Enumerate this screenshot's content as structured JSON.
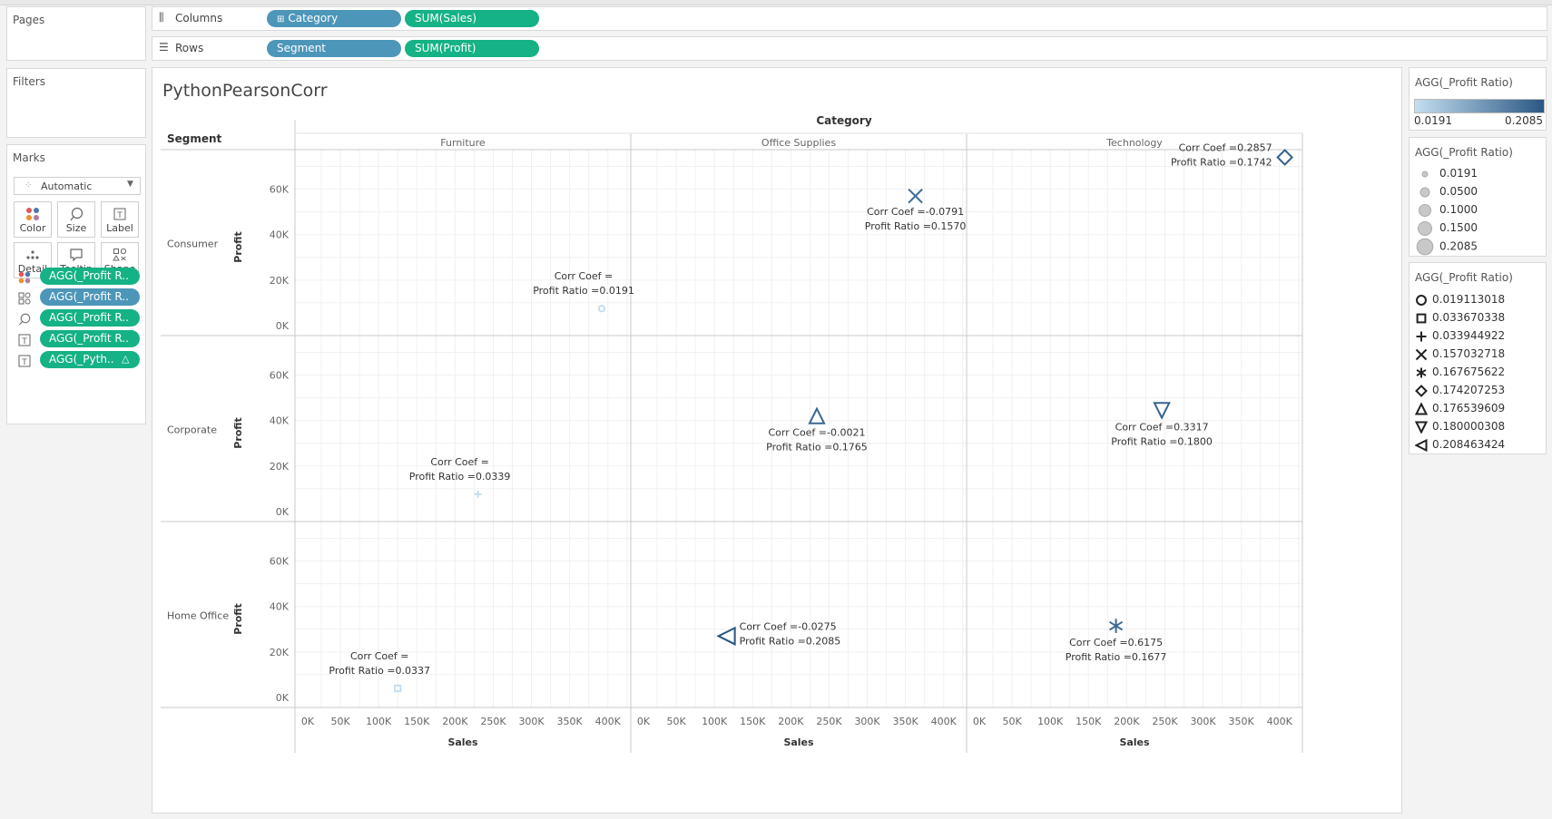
{
  "shelves": {
    "pages_title": "Pages",
    "columns_label": "Columns",
    "rows_label": "Rows",
    "columns_pills": [
      "Category",
      "SUM(Sales)"
    ],
    "rows_pills": [
      "Segment",
      "SUM(Profit)"
    ]
  },
  "filters": {
    "title": "Filters"
  },
  "marks": {
    "title": "Marks",
    "mark_type": "Automatic",
    "buttons": [
      "Color",
      "Size",
      "Label",
      "Detail",
      "Tooltip",
      "Shape"
    ],
    "fields": [
      {
        "icon": "color-dots-icon",
        "label": "AGG(_Profit R..",
        "color": "#15b285"
      },
      {
        "icon": "shape-icon",
        "label": "AGG(_Profit R..",
        "color": "#4c96b9"
      },
      {
        "icon": "size-icon",
        "label": "AGG(_Profit R..",
        "color": "#15b285"
      },
      {
        "icon": "label-icon",
        "label": "AGG(_Profit R..",
        "color": "#15b285"
      },
      {
        "icon": "label-icon",
        "label": "AGG(_Pyth..",
        "color": "#15b285"
      }
    ]
  },
  "view": {
    "title": "PythonPearsonCorr",
    "column_header": "Category",
    "row_header": "Segment",
    "y_axis_label": "Profit",
    "x_axis_label": "Sales"
  },
  "legends": {
    "color": {
      "title": "AGG(_Profit Ratio)",
      "min": "0.0191",
      "max": "0.2085",
      "low_color": "#c4def0",
      "high_color": "#2a5783"
    },
    "size": {
      "title": "AGG(_Profit Ratio)",
      "items": [
        "0.0191",
        "0.0500",
        "0.1000",
        "0.1500",
        "0.2085"
      ]
    },
    "shape": {
      "title": "AGG(_Profit Ratio)",
      "items": [
        {
          "shape": "circle",
          "label": "0.019113018"
        },
        {
          "shape": "square",
          "label": "0.033670338"
        },
        {
          "shape": "plus",
          "label": "0.033944922"
        },
        {
          "shape": "cross",
          "label": "0.157032718"
        },
        {
          "shape": "asterisk",
          "label": "0.167675622"
        },
        {
          "shape": "diamond",
          "label": "0.174207253"
        },
        {
          "shape": "triangle-up",
          "label": "0.176539609"
        },
        {
          "shape": "triangle-down",
          "label": "0.180000308"
        },
        {
          "shape": "triangle-left",
          "label": "0.208463424"
        }
      ]
    }
  },
  "chart_data": {
    "type": "scatter",
    "title": "PythonPearsonCorr",
    "xlabel": "Sales",
    "ylabel": "Profit",
    "categories": [
      "Furniture",
      "Office Supplies",
      "Technology"
    ],
    "segments": [
      "Consumer",
      "Corporate",
      "Home Office"
    ],
    "xlim": [
      0,
      430000
    ],
    "ylim": [
      0,
      75000
    ],
    "x_ticks": [
      "0K",
      "50K",
      "100K",
      "150K",
      "200K",
      "250K",
      "300K",
      "350K",
      "400K"
    ],
    "y_ticks": [
      "0K",
      "20K",
      "40K",
      "60K"
    ],
    "grid": true,
    "points": [
      {
        "segment": "Consumer",
        "category": "Furniture",
        "sales": 392000,
        "profit": 7500,
        "shape": "circle",
        "color": "#c4def0",
        "corr_label": "Corr Coef =",
        "ratio_label": "Profit Ratio =0.0191"
      },
      {
        "segment": "Consumer",
        "category": "Office Supplies",
        "sales": 363000,
        "profit": 57000,
        "shape": "cross",
        "color": "#3f6f9a",
        "corr_label": "Corr Coef =-0.0791",
        "ratio_label": "Profit Ratio =0.1570"
      },
      {
        "segment": "Consumer",
        "category": "Technology",
        "sales": 407000,
        "profit": 74000,
        "shape": "diamond",
        "color": "#35628e",
        "corr_label": "Corr Coef =0.2857",
        "ratio_label": "Profit Ratio =0.1742"
      },
      {
        "segment": "Corporate",
        "category": "Furniture",
        "sales": 230000,
        "profit": 7600,
        "shape": "plus",
        "color": "#c4def0",
        "corr_label": "Corr Coef =",
        "ratio_label": "Profit Ratio =0.0339"
      },
      {
        "segment": "Corporate",
        "category": "Office Supplies",
        "sales": 234000,
        "profit": 42000,
        "shape": "triangle-up",
        "color": "#3a6690",
        "corr_label": "Corr Coef =-0.0021",
        "ratio_label": "Profit Ratio =0.1765"
      },
      {
        "segment": "Corporate",
        "category": "Technology",
        "sales": 246000,
        "profit": 44500,
        "shape": "triangle-down",
        "color": "#37638f",
        "corr_label": "Corr Coef =0.3317",
        "ratio_label": "Profit Ratio =0.1800"
      },
      {
        "segment": "Home Office",
        "category": "Furniture",
        "sales": 125000,
        "profit": 4000,
        "shape": "square",
        "color": "#c4def0",
        "corr_label": "Corr Coef =",
        "ratio_label": "Profit Ratio =0.0337"
      },
      {
        "segment": "Home Office",
        "category": "Office Supplies",
        "sales": 116000,
        "profit": 27000,
        "shape": "triangle-left",
        "color": "#2a5783",
        "corr_label": "Corr Coef =-0.0275",
        "ratio_label": "Profit Ratio =0.2085"
      },
      {
        "segment": "Home Office",
        "category": "Technology",
        "sales": 186000,
        "profit": 31500,
        "shape": "asterisk",
        "color": "#3c6893",
        "corr_label": "Corr Coef =0.6175",
        "ratio_label": "Profit Ratio =0.1677"
      }
    ]
  }
}
